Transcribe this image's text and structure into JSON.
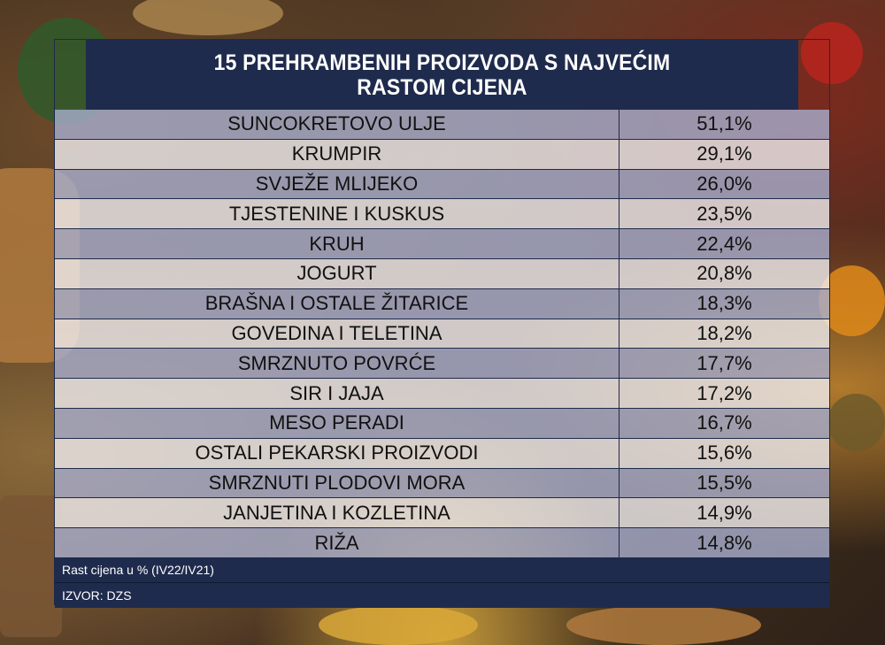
{
  "chart_data": {
    "type": "table",
    "title_line1": "15 PREHRAMBENIH PROIZVODA S NAJVEĆIM",
    "title_line2": "RASTOM CIJENA",
    "rows": [
      {
        "name": "SUNCOKRETOVO ULJE",
        "value": "51,1%"
      },
      {
        "name": "KRUMPIR",
        "value": "29,1%"
      },
      {
        "name": "SVJEŽE MLIJEKO",
        "value": "26,0%"
      },
      {
        "name": "TJESTENINE I KUSKUS",
        "value": "23,5%"
      },
      {
        "name": "KRUH",
        "value": "22,4%"
      },
      {
        "name": "JOGURT",
        "value": "20,8%"
      },
      {
        "name": "BRAŠNA I OSTALE ŽITARICE",
        "value": "18,3%"
      },
      {
        "name": "GOVEDINA I TELETINA",
        "value": "18,2%"
      },
      {
        "name": "SMRZNUTO POVRĆE",
        "value": "17,7%"
      },
      {
        "name": "SIR I JAJA",
        "value": "17,2%"
      },
      {
        "name": "MESO PERADI",
        "value": "16,7%"
      },
      {
        "name": "OSTALI PEKARSKI PROIZVODI",
        "value": "15,6%"
      },
      {
        "name": "SMRZNUTI PLODOVI MORA",
        "value": "15,5%"
      },
      {
        "name": "JANJETINA I KOZLETINA",
        "value": "14,9%"
      },
      {
        "name": "RIŽA",
        "value": "14,8%"
      }
    ],
    "note": "Rast cijena u % (IV22/IV21)",
    "source": "IZVOR: DZS"
  },
  "colors": {
    "header_bg": "#1f2b4d",
    "row_odd": "#a8aece",
    "row_even": "#f0eef0"
  }
}
